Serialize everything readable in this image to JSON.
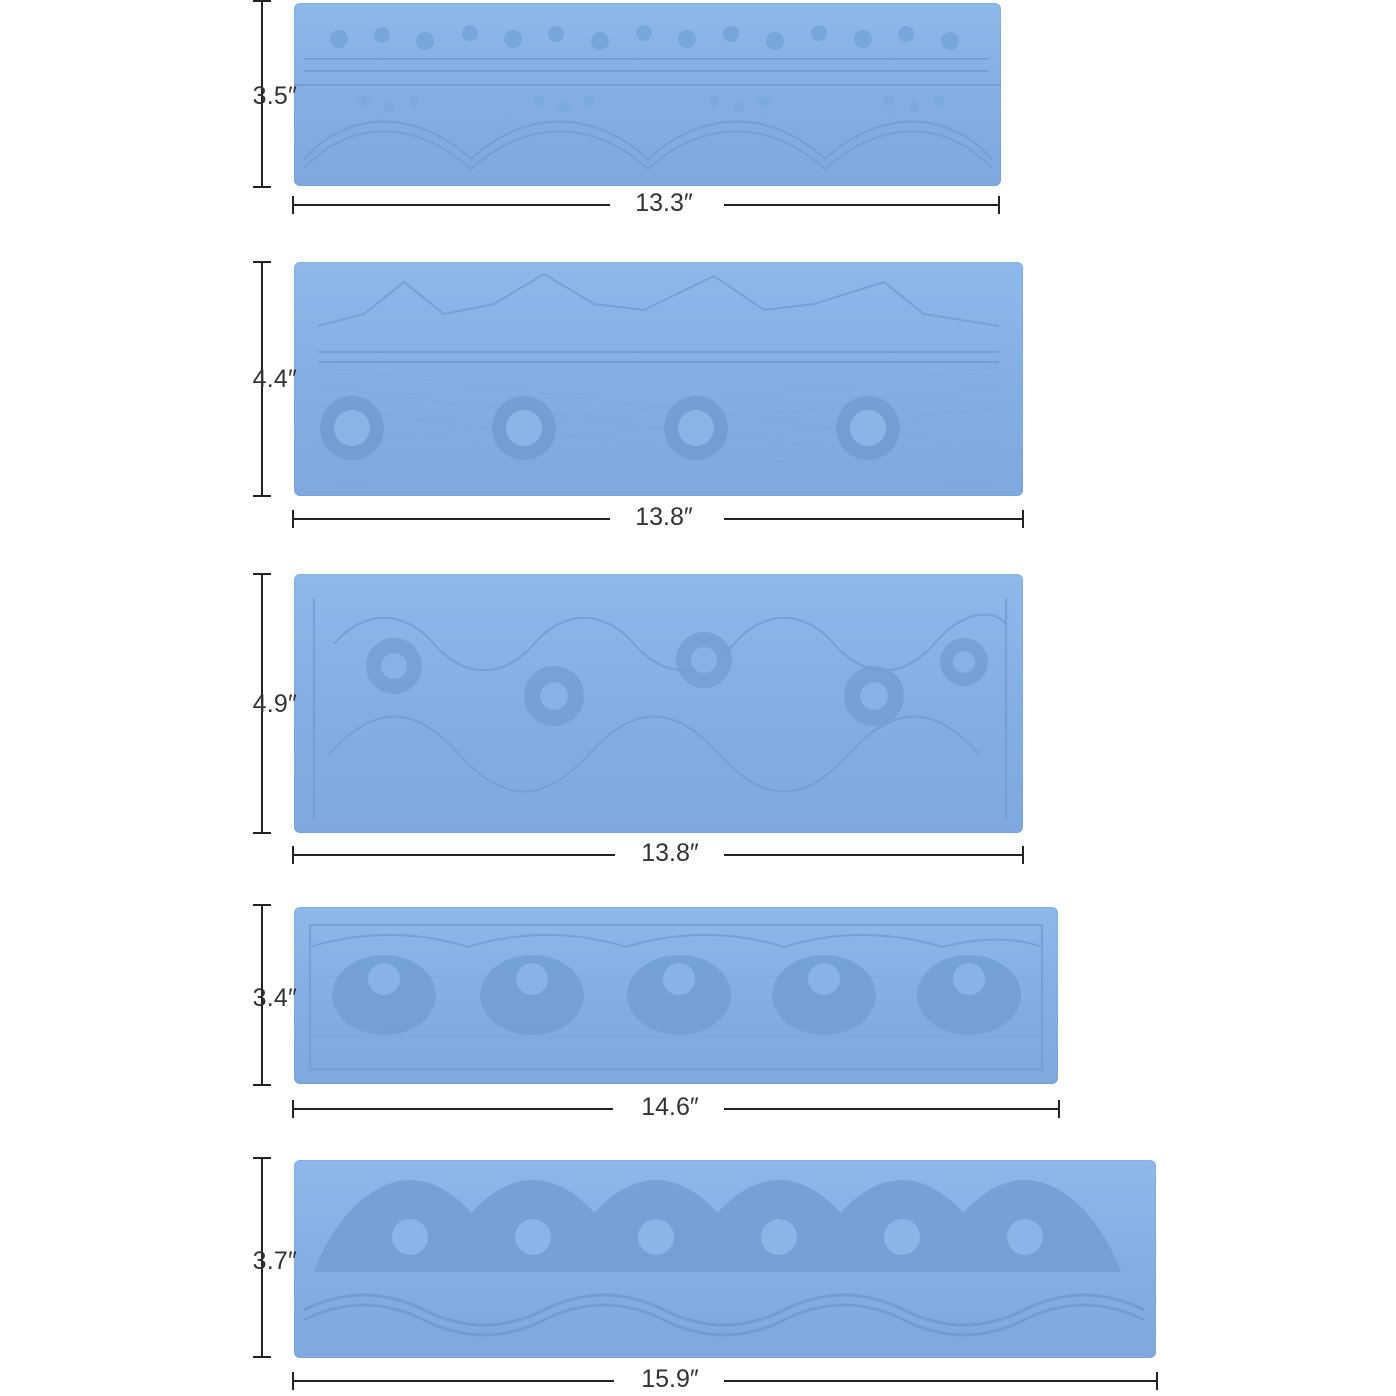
{
  "mats": [
    {
      "height_label": "3.5″",
      "width_label": "13.3″"
    },
    {
      "height_label": "4.4″",
      "width_label": "13.8″"
    },
    {
      "height_label": "4.9″",
      "width_label": "13.8″"
    },
    {
      "height_label": "3.4″",
      "width_label": "14.6″"
    },
    {
      "height_label": "3.7″",
      "width_label": "15.9″"
    }
  ]
}
